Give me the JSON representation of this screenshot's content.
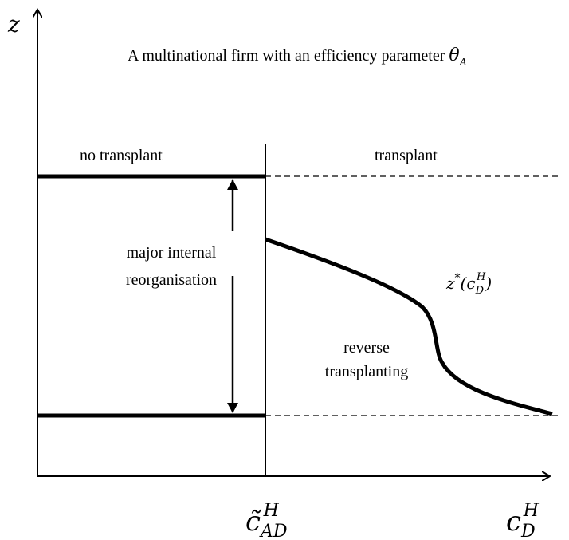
{
  "axes": {
    "y_label": "z"
  },
  "title": {
    "text": "A multinational firm with an efficiency parameter ",
    "symbol": "θ",
    "sub": "A"
  },
  "regions": {
    "left": "no transplant",
    "right": "transplant"
  },
  "labels": {
    "reorganisation": [
      "major internal",
      "reorganisation"
    ],
    "reverse": [
      "reverse",
      "transplanting"
    ],
    "curve": {
      "base": "z",
      "sup": "*",
      "open": "(c",
      "sub": "D",
      "sup2": "H",
      "close": ")"
    }
  },
  "x_marks": {
    "threshold": {
      "base": "c̃",
      "sub": "AD",
      "sup": "H"
    },
    "end": {
      "base": "c",
      "sub": "D",
      "sup": "H"
    }
  }
}
